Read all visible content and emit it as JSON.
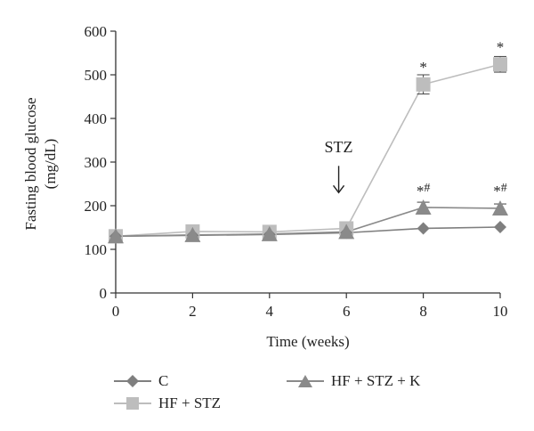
{
  "chart_data": {
    "type": "line",
    "xlabel": "Time (weeks)",
    "ylabel_lines": [
      "Fasting blood glucose",
      "(mg/dL)"
    ],
    "x": [
      0,
      2,
      4,
      6,
      8,
      10
    ],
    "xlim": [
      0,
      10
    ],
    "ylim": [
      0,
      600
    ],
    "xticks": [
      0,
      2,
      4,
      6,
      8,
      10
    ],
    "yticks": [
      0,
      100,
      200,
      300,
      400,
      500,
      600
    ],
    "grid": false,
    "series": [
      {
        "name": "C",
        "marker": "diamond",
        "color": "#7f7f7f",
        "values": [
          130,
          132,
          134,
          138,
          148,
          151
        ],
        "errors": [
          0,
          0,
          0,
          0,
          0,
          0
        ]
      },
      {
        "name": "HF + STZ",
        "marker": "square",
        "color": "#bdbdbd",
        "values": [
          130,
          141,
          140,
          148,
          478,
          524
        ],
        "errors": [
          5,
          5,
          5,
          6,
          22,
          18
        ]
      },
      {
        "name": "HF + STZ + K",
        "marker": "triangle",
        "color": "#8a8a8a",
        "values": [
          130,
          133,
          135,
          140,
          196,
          194
        ],
        "errors": [
          3,
          3,
          3,
          4,
          12,
          10
        ]
      }
    ],
    "annotations": [
      {
        "text": "STZ",
        "x": 5.8,
        "y": 322,
        "type": "label"
      },
      {
        "text": "↓",
        "x": 5.8,
        "y": 230,
        "type": "arrow"
      },
      {
        "text": "*",
        "x": 8,
        "y": 506,
        "type": "significance"
      },
      {
        "text": "*",
        "x": 10,
        "y": 552,
        "type": "significance"
      },
      {
        "text": "*#",
        "x": 8,
        "y": 222,
        "type": "significance"
      },
      {
        "text": "*#",
        "x": 10,
        "y": 222,
        "type": "significance"
      }
    ],
    "legend": {
      "placement": "bottom"
    }
  }
}
